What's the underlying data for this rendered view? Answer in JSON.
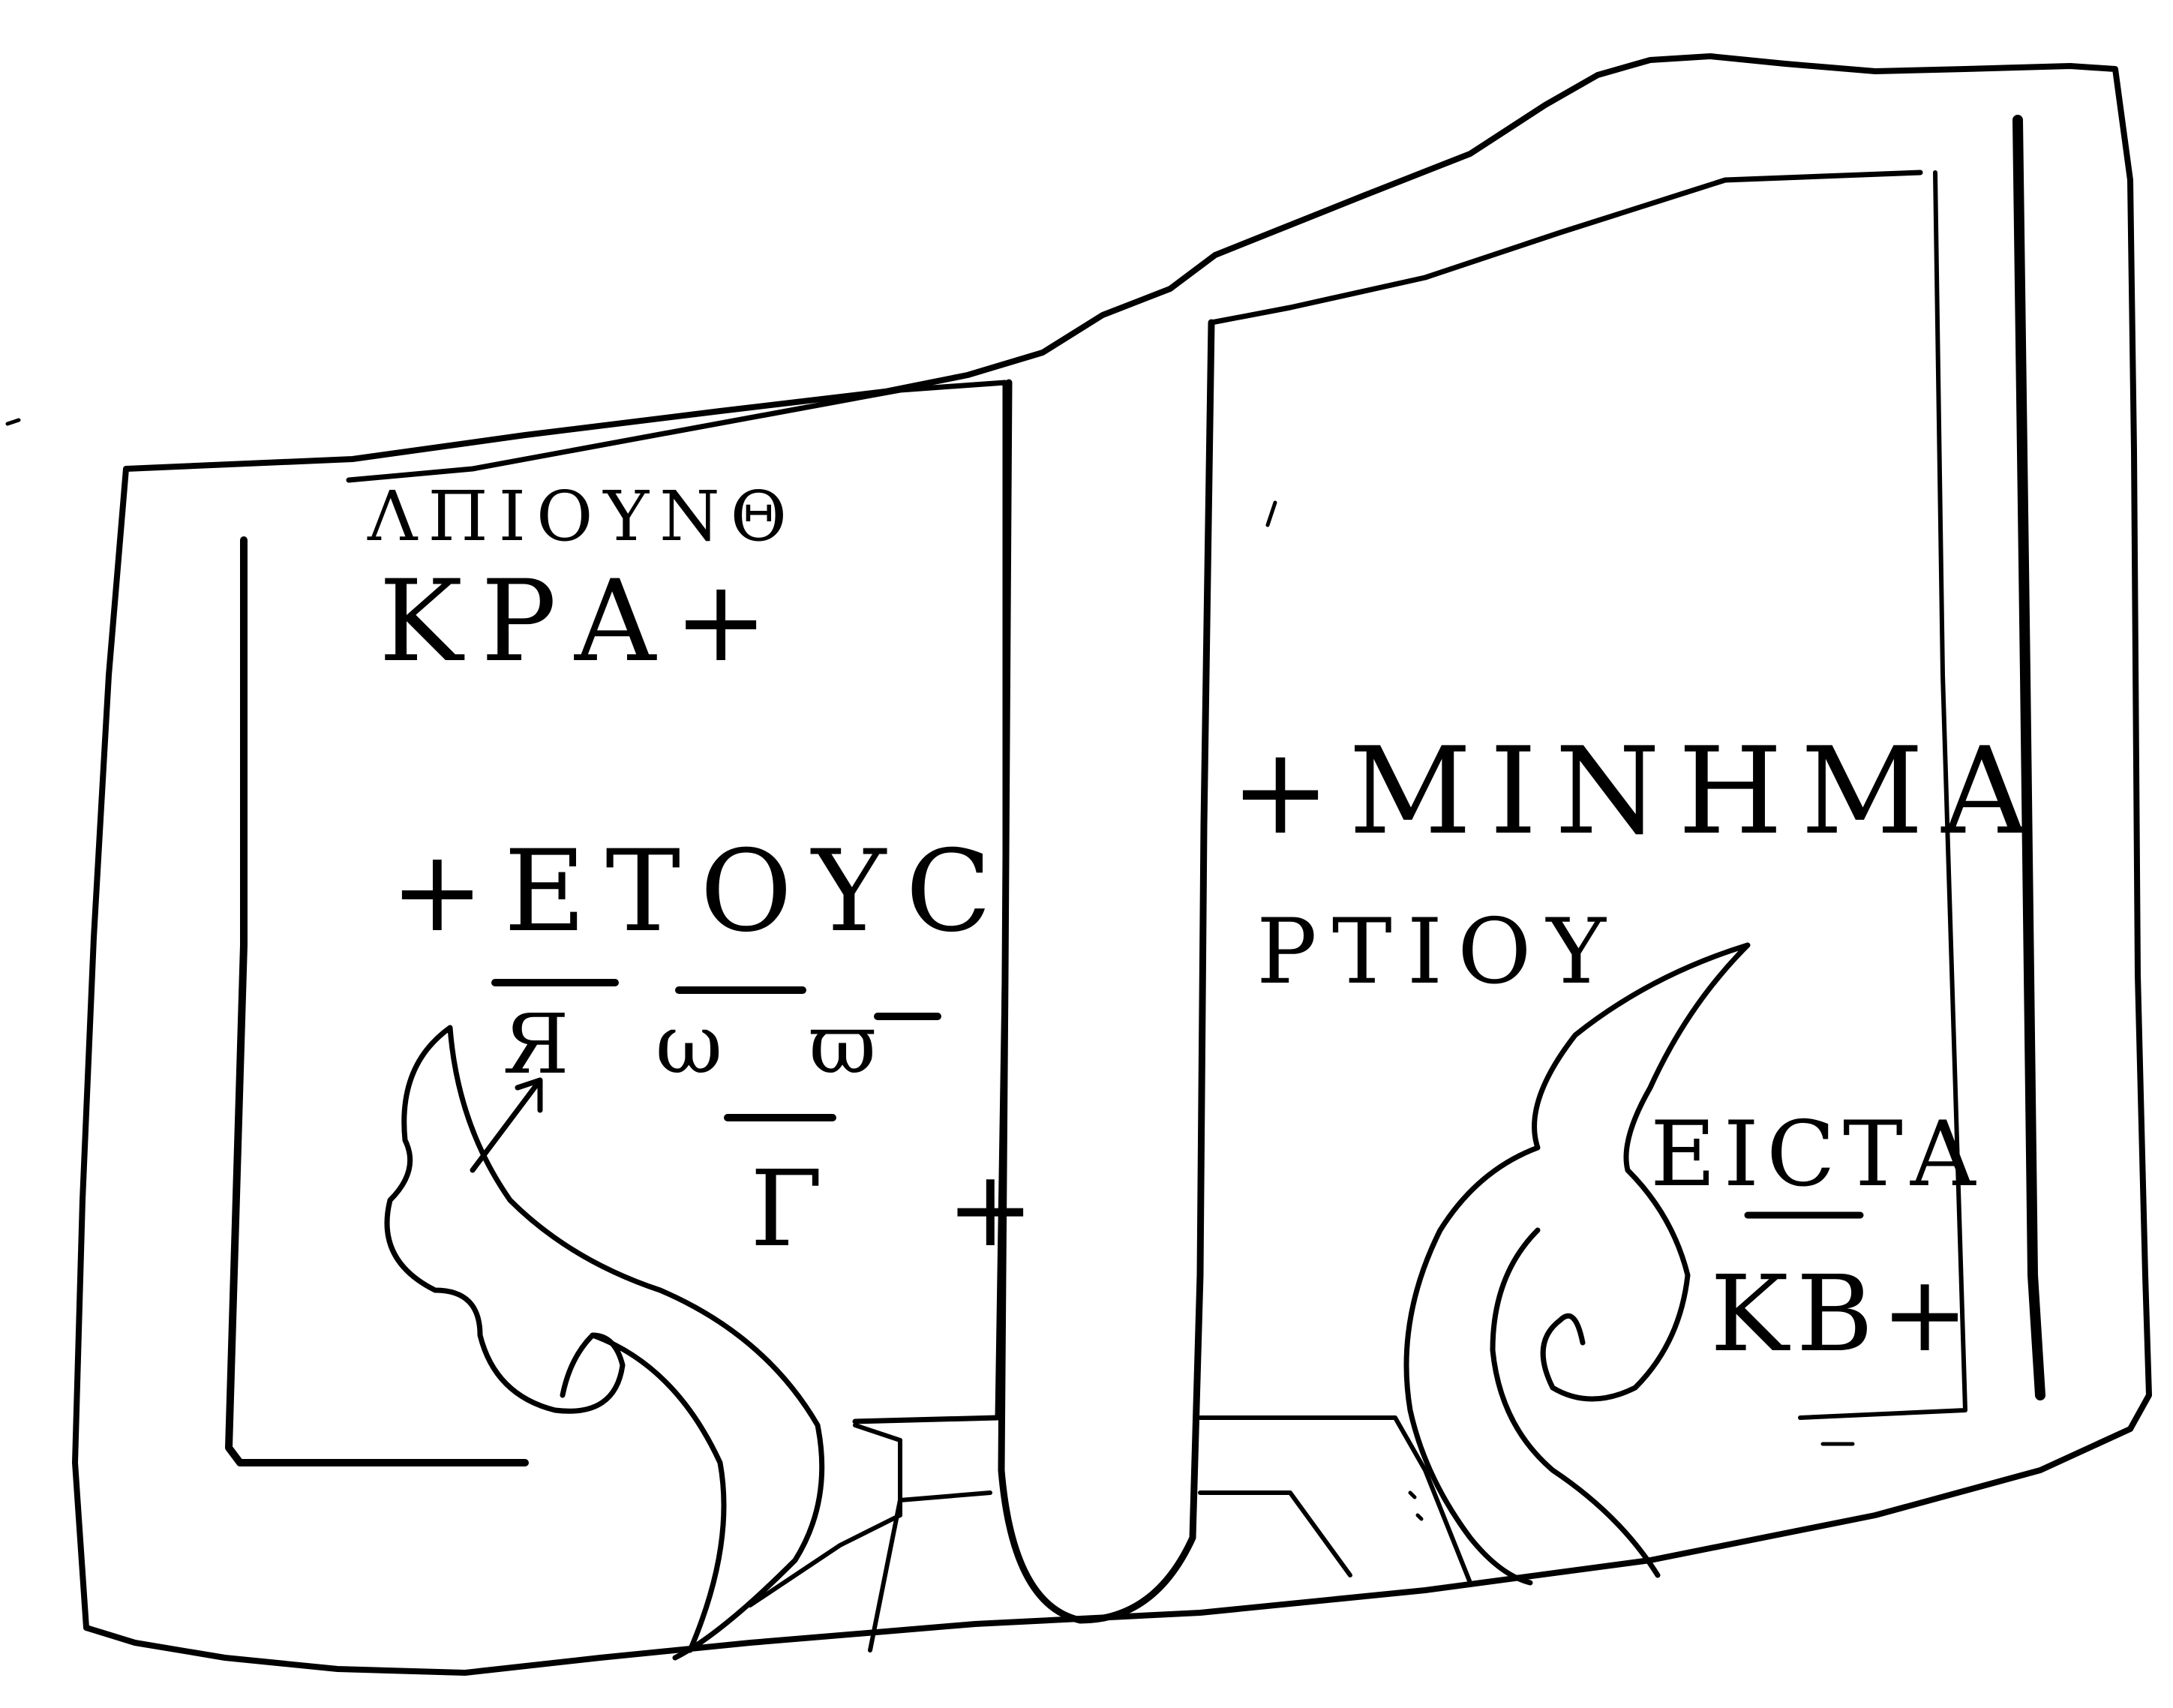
{
  "inscription": {
    "left_page": {
      "line1": "ΛΠΙΟΥΝΘ",
      "line2": "ΚΡΑ+",
      "line3": "+ΕΤΟΥC",
      "line4": "Я ω ϖ",
      "line5": "Γ +"
    },
    "right_page": {
      "line1": "+ΜΙΝΗΜΑ",
      "line2": "ΡΤΙΟΥ",
      "line3": "ΕΙCΤΑ",
      "line4": "ΚΒ+"
    }
  }
}
